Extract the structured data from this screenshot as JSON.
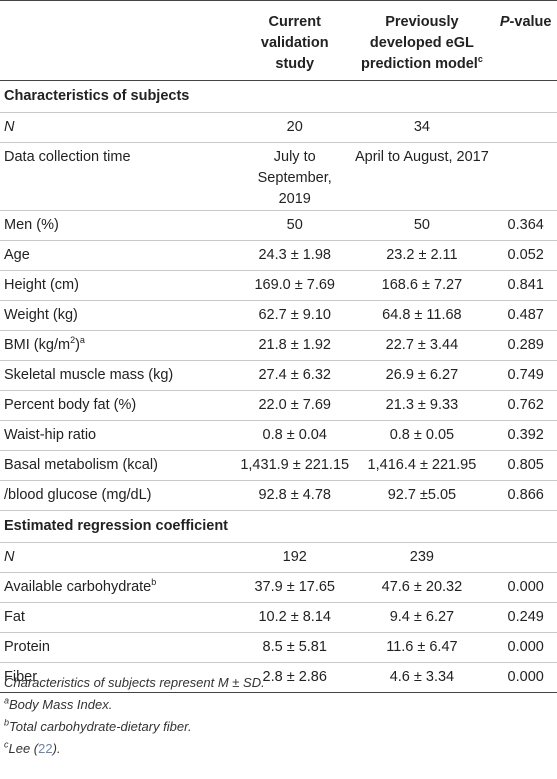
{
  "header": {
    "col1": "",
    "col2": "Current validation study",
    "col3_main": "Previously developed eGL prediction model",
    "col3_sup": "c",
    "col4_italic": "P",
    "col4_rest": "-value"
  },
  "sections": [
    {
      "title": "Characteristics of subjects",
      "rows": [
        {
          "label": "N",
          "label_italic": true,
          "current": "20",
          "previous": "34",
          "p": ""
        },
        {
          "label": "Data collection time",
          "current": "July to September, 2019",
          "previous": "April to August, 2017",
          "p": "",
          "tall": true
        },
        {
          "label": "Men (%)",
          "current": "50",
          "previous": "50",
          "p": "0.364"
        },
        {
          "label": "Age",
          "current": "24.3 ± 1.98",
          "previous": "23.2 ± 2.11",
          "p": "0.052"
        },
        {
          "label": "Height (cm)",
          "current": "169.0 ± 7.69",
          "previous": "168.6 ± 7.27",
          "p": "0.841"
        },
        {
          "label": "Weight (kg)",
          "current": "62.7 ± 9.10",
          "previous": "64.8 ± 11.68",
          "p": "0.487"
        },
        {
          "label": "BMI (kg/m",
          "label_sup": "2",
          "label_after": ")",
          "label_sup2": "a",
          "current": "21.8 ± 1.92",
          "previous": "22.7 ± 3.44",
          "p": "0.289"
        },
        {
          "label": "Skeletal muscle mass (kg)",
          "current": "27.4 ± 6.32",
          "previous": "26.9 ± 6.27",
          "p": "0.749"
        },
        {
          "label": "Percent body fat (%)",
          "current": "22.0 ± 7.69",
          "previous": "21.3 ± 9.33",
          "p": "0.762"
        },
        {
          "label": "Waist-hip ratio",
          "current": "0.8 ± 0.04",
          "previous": "0.8 ± 0.05",
          "p": "0.392"
        },
        {
          "label": "Basal metabolism (kcal)",
          "current": "1,431.9 ± 221.15",
          "previous": "1,416.4 ± 221.95",
          "p": "0.805"
        },
        {
          "label": "/blood glucose (mg/dL)",
          "current": "92.8 ± 4.78",
          "previous": "92.7 ±5.05",
          "p": "0.866"
        }
      ]
    },
    {
      "title": "Estimated regression coefficient",
      "rows": [
        {
          "label": "N",
          "label_italic": true,
          "current": "192",
          "previous": "239",
          "p": ""
        },
        {
          "label": "Available carbohydrate",
          "label_sup2": "b",
          "current": "37.9 ± 17.65",
          "previous": "47.6 ± 20.32",
          "p": "0.000"
        },
        {
          "label": "Fat",
          "current": "10.2 ± 8.14",
          "previous": "9.4 ± 6.27",
          "p": "0.249"
        },
        {
          "label": "Protein",
          "current": "8.5 ± 5.81",
          "previous": "11.6 ± 6.47",
          "p": "0.000"
        },
        {
          "label": "Fiber",
          "current": "2.8 ± 2.86",
          "previous": "4.6 ± 3.34",
          "p": "0.000"
        }
      ]
    }
  ],
  "footnotes": {
    "summary": "Characteristics of subjects represent M ± SD.",
    "a_mark": "a",
    "a_text": "Body Mass Index.",
    "b_mark": "b",
    "b_text": "Total carbohydrate-dietary fiber.",
    "c_mark": "c",
    "c_text": "Lee (",
    "c_ref": "22",
    "c_close": ")."
  }
}
